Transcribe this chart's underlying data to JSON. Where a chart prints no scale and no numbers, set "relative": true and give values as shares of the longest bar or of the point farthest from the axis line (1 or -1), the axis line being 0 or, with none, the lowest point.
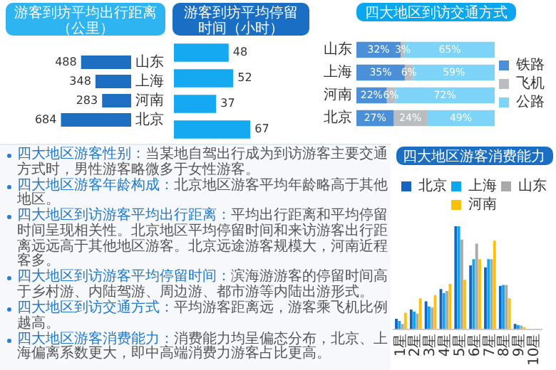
{
  "chart_data": [
    {
      "type": "bar",
      "orientation": "horizontal",
      "title": "游客到坊平均出行距离（公里）",
      "categories": [
        "山东",
        "上海",
        "河南",
        "北京"
      ],
      "values": [
        488,
        348,
        283,
        684
      ],
      "color": "#1e6fc2",
      "data_labels": true,
      "tick_labels": "y"
    },
    {
      "type": "bar",
      "orientation": "horizontal",
      "title": "游客到坊平均停留时间（小时）",
      "categories": [
        null,
        null,
        null,
        null
      ],
      "values": [
        48,
        52,
        37,
        67
      ],
      "color": "#14a9f0",
      "data_labels": true,
      "tick_labels": false
    },
    {
      "type": "bar",
      "orientation": "horizontal",
      "stacked": true,
      "title": "四大地区到访交通方式",
      "categories": [
        "山东",
        "上海",
        "河南",
        "北京"
      ],
      "legend": "right",
      "tick_labels": "y",
      "series": [
        {
          "name": "铁路",
          "color": "#4a8fd8",
          "values": [
            32,
            35,
            22,
            27
          ],
          "value_labels": [
            "32%",
            "35%",
            "22%",
            "27%"
          ]
        },
        {
          "name": "飞机",
          "color": "#b9bdc0",
          "values": [
            3,
            6,
            6,
            24
          ],
          "value_labels": [
            "3%",
            "6%",
            "6%",
            "24%"
          ]
        },
        {
          "name": "公路",
          "color": "#7dd3f8",
          "values": [
            65,
            59,
            72,
            49
          ],
          "value_labels": [
            "65%",
            "59%",
            "72%",
            "49%"
          ]
        }
      ]
    },
    {
      "type": "other",
      "annotations": [
        "四大地区游客性别：当某地自驾出行成为到访游客主要交通方式时，男性游客略微多于女性游客。",
        "四大地区游客年龄构成：北京地区游客平均年龄略高于其他地区。",
        "四大地区到访游客平均出行距离：平均出行距离和平均停留时间呈现相关性。北京地区平均停留时间和来访游客出行距离远远高于其他地区游客。北京远途游客规模大，河南近程客多。",
        "四大地区到访游客平均停留时间：滨海游游客的停留时间高于乡村游、内陆驾游、周边游、都市游等内陆出游形式。",
        "四大地区到访交通方式：平均游客距离远，游客乘飞机比例越高。",
        "四大地区游客消费能力：消费能力均呈偏态分布，北京、上海偏离系数更大，即中高端消费力游客占比更高。"
      ]
    },
    {
      "type": "bar",
      "relative": true,
      "title": "四大地区游客消费能力",
      "categories": [
        "1星",
        "2星",
        "3星",
        "4星",
        "5星",
        "6星",
        "7星",
        "8星",
        "9星",
        "10星"
      ],
      "legend": "top",
      "tick_labels": "x",
      "series": [
        {
          "name": "北京",
          "color": "#1565c0",
          "values": [
            0.1,
            0.19,
            0.27,
            0.39,
            1,
            0.62,
            0.6,
            0.42,
            0.05,
            0
          ]
        },
        {
          "name": "上海",
          "color": "#0aa8f2",
          "values": [
            0.08,
            0.17,
            0.22,
            0.35,
            1,
            0.68,
            0.68,
            0.43,
            0.04,
            0
          ]
        },
        {
          "name": "山东",
          "color": "#a9a9a9",
          "values": [
            0.05,
            0.15,
            0.21,
            0.37,
            0.87,
            0.83,
            0.68,
            0.43,
            0.035,
            0
          ]
        },
        {
          "name": "河南",
          "color": "#ffc107",
          "values": [
            0.16,
            0.3,
            0.33,
            0.44,
            0.48,
            0.68,
            0.86,
            0.3,
            0.02,
            0
          ]
        }
      ]
    }
  ]
}
